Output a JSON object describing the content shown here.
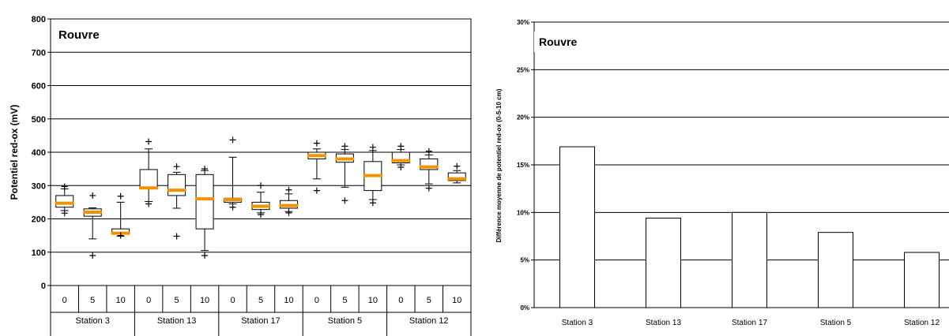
{
  "chart_data": [
    {
      "type": "box",
      "title": "Rouvre",
      "ylabel": "Potentiel red-ox (mV)",
      "ylim": [
        0,
        800
      ],
      "yticks": [
        0,
        100,
        200,
        300,
        400,
        500,
        600,
        700,
        800
      ],
      "grid": true,
      "groups": [
        {
          "label": "Station 3",
          "depths": [
            "0",
            "5",
            "10"
          ]
        },
        {
          "label": "Station 13",
          "depths": [
            "0",
            "5",
            "10"
          ]
        },
        {
          "label": "Station 17",
          "depths": [
            "0",
            "5",
            "10"
          ]
        },
        {
          "label": "Station 5",
          "depths": [
            "0",
            "5",
            "10"
          ]
        },
        {
          "label": "Station 12",
          "depths": [
            "0",
            "5",
            "10"
          ]
        }
      ],
      "boxes": [
        {
          "group": "Station 3",
          "depth": "0",
          "q1": 235,
          "median": 247,
          "q3": 270,
          "whisker_low": 225,
          "whisker_high": 290,
          "outliers": [
            217,
            297
          ]
        },
        {
          "group": "Station 3",
          "depth": "5",
          "q1": 208,
          "median": 220,
          "q3": 230,
          "whisker_low": 140,
          "whisker_high": 233,
          "outliers": [
            90,
            270
          ]
        },
        {
          "group": "Station 3",
          "depth": "10",
          "q1": 155,
          "median": 157,
          "q3": 170,
          "whisker_low": 148,
          "whisker_high": 250,
          "outliers": [
            150,
            268
          ]
        },
        {
          "group": "Station 13",
          "depth": "0",
          "q1": 290,
          "median": 293,
          "q3": 348,
          "whisker_low": 252,
          "whisker_high": 410,
          "outliers": [
            245,
            432
          ]
        },
        {
          "group": "Station 13",
          "depth": "5",
          "q1": 270,
          "median": 286,
          "q3": 333,
          "whisker_low": 232,
          "whisker_high": 340,
          "outliers": [
            148,
            357
          ]
        },
        {
          "group": "Station 13",
          "depth": "10",
          "q1": 170,
          "median": 260,
          "q3": 333,
          "whisker_low": 105,
          "whisker_high": 345,
          "outliers": [
            90,
            350
          ]
        },
        {
          "group": "Station 17",
          "depth": "0",
          "q1": 250,
          "median": 258,
          "q3": 262,
          "whisker_low": 245,
          "whisker_high": 385,
          "outliers": [
            235,
            437
          ]
        },
        {
          "group": "Station 17",
          "depth": "5",
          "q1": 228,
          "median": 238,
          "q3": 250,
          "whisker_low": 218,
          "whisker_high": 280,
          "outliers": [
            213,
            300
          ]
        },
        {
          "group": "Station 17",
          "depth": "10",
          "q1": 232,
          "median": 240,
          "q3": 255,
          "whisker_low": 222,
          "whisker_high": 275,
          "outliers": [
            218,
            287
          ]
        },
        {
          "group": "Station 5",
          "depth": "0",
          "q1": 380,
          "median": 390,
          "q3": 400,
          "whisker_low": 320,
          "whisker_high": 410,
          "outliers": [
            285,
            427
          ]
        },
        {
          "group": "Station 5",
          "depth": "5",
          "q1": 370,
          "median": 380,
          "q3": 395,
          "whisker_low": 295,
          "whisker_high": 408,
          "outliers": [
            255,
            418
          ]
        },
        {
          "group": "Station 5",
          "depth": "10",
          "q1": 285,
          "median": 330,
          "q3": 372,
          "whisker_low": 258,
          "whisker_high": 405,
          "outliers": [
            248,
            415
          ]
        },
        {
          "group": "Station 12",
          "depth": "0",
          "q1": 368,
          "median": 375,
          "q3": 400,
          "whisker_low": 362,
          "whisker_high": 408,
          "outliers": [
            355,
            418
          ]
        },
        {
          "group": "Station 12",
          "depth": "5",
          "q1": 348,
          "median": 356,
          "q3": 380,
          "whisker_low": 305,
          "whisker_high": 392,
          "outliers": [
            292,
            403
          ]
        },
        {
          "group": "Station 12",
          "depth": "10",
          "q1": 315,
          "median": 320,
          "q3": 338,
          "whisker_low": 308,
          "whisker_high": 345,
          "outliers": [
            358
          ]
        }
      ],
      "colors": {
        "median": "#f39200",
        "box": "#000000"
      }
    },
    {
      "type": "bar",
      "title": "Rouvre",
      "ylabel": "Différence moyenne de potentiel red-ox (0-5-10 cm)",
      "ylim": [
        0,
        30
      ],
      "yticks": [
        "0%",
        "5%",
        "10%",
        "15%",
        "20%",
        "25%",
        "30%"
      ],
      "grid": true,
      "categories": [
        "Station 3",
        "Station 13",
        "Station 17",
        "Station 5",
        "Station 12"
      ],
      "values": [
        16.9,
        9.4,
        10.0,
        7.9,
        5.8
      ],
      "colors": {
        "bar": "#ffffff",
        "edge": "#000000"
      }
    }
  ]
}
